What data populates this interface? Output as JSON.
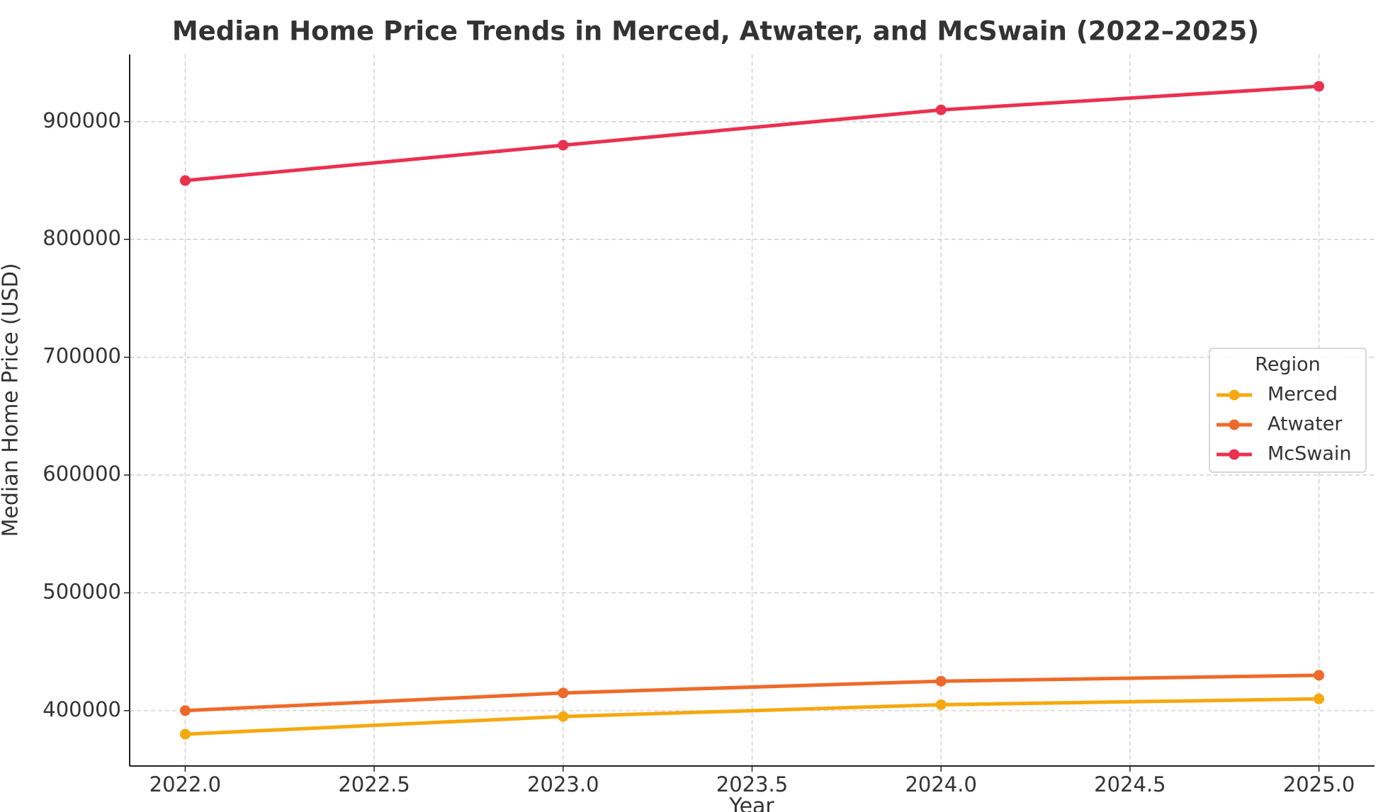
{
  "chart_data": {
    "type": "line",
    "title": "Median Home Price Trends in Merced, Atwater, and McSwain (2022–2025)",
    "x_label": "Year",
    "y_label": "Median Home Price (USD)",
    "x": [
      2022,
      2023,
      2024,
      2025
    ],
    "series": [
      {
        "name": "Merced",
        "color": "#f5a90f",
        "values": [
          380000,
          395000,
          405000,
          410000
        ]
      },
      {
        "name": "Atwater",
        "color": "#ee6a2a",
        "values": [
          400000,
          415000,
          425000,
          430000
        ]
      },
      {
        "name": "McSwain",
        "color": "#ea3150",
        "values": [
          850000,
          880000,
          910000,
          930000
        ]
      }
    ],
    "xlim": [
      2021.853,
      2025.147
    ],
    "xticks": [
      {
        "value": 2022,
        "label": "2022.0"
      },
      {
        "value": 2022.5,
        "label": "2022.5"
      },
      {
        "value": 2023,
        "label": "2023.0"
      },
      {
        "value": 2023.5,
        "label": "2023.5"
      },
      {
        "value": 2024,
        "label": "2024.0"
      },
      {
        "value": 2024.5,
        "label": "2024.5"
      },
      {
        "value": 2025,
        "label": "2025.0"
      }
    ],
    "ylim": [
      353000,
      957000
    ],
    "yticks": [
      400000,
      500000,
      600000,
      700000,
      800000,
      900000
    ],
    "grid": true,
    "legend_title": "Region",
    "legend_position": "center right"
  }
}
